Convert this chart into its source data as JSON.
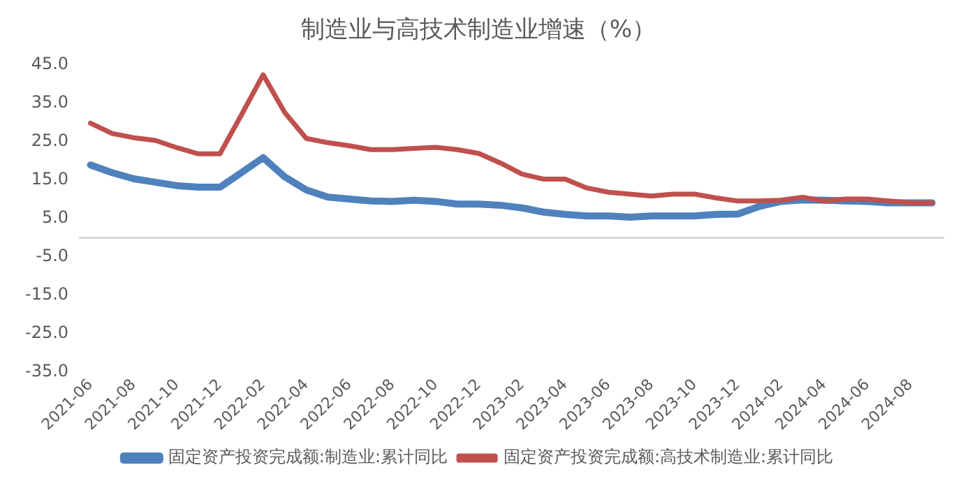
{
  "chart_data": {
    "type": "line",
    "title": "制造业与高技术制造业增速（%）",
    "categories": [
      "2021-06",
      null,
      "2021-08",
      null,
      "2021-10",
      null,
      "2021-12",
      null,
      "2022-02",
      null,
      "2022-04",
      null,
      "2022-06",
      null,
      "2022-08",
      null,
      "2022-10",
      null,
      "2022-12",
      null,
      "2023-02",
      null,
      "2023-04",
      null,
      "2023-06",
      null,
      "2023-08",
      null,
      "2023-10",
      null,
      "2023-12",
      null,
      "2024-02",
      null,
      "2024-04",
      null,
      "2024-06",
      null,
      "2024-08",
      null
    ],
    "series": [
      {
        "name": "固定资产投资完成额:制造业:累计同比",
        "color": "#4f81bd",
        "values": [
          18.9,
          16.9,
          15.3,
          14.4,
          13.5,
          13.1,
          13.1,
          16.9,
          20.8,
          15.8,
          12.4,
          10.5,
          10,
          9.5,
          9.4,
          9.7,
          9.4,
          8.7,
          8.7,
          8.4,
          7.7,
          6.6,
          6,
          5.6,
          5.6,
          5.3,
          5.6,
          5.6,
          5.6,
          6,
          6.1,
          8.1,
          9.4,
          9.8,
          9.7,
          9.5,
          9.4,
          9,
          9,
          9
        ]
      },
      {
        "name": "固定资产投资完成额:高技术制造业:累计同比",
        "color": "#c0504d",
        "values": [
          29.8,
          27.1,
          26,
          25.3,
          23.4,
          21.8,
          21.8,
          32,
          42.4,
          32.6,
          25.8,
          24.7,
          23.9,
          22.9,
          22.9,
          23.2,
          23.5,
          22.9,
          21.9,
          19.4,
          16.5,
          15.2,
          15.2,
          12.9,
          11.8,
          11.3,
          10.8,
          11.3,
          11.3,
          10.3,
          9.5,
          9.5,
          9.7,
          10.5,
          9.5,
          10,
          10,
          9.5,
          9,
          9
        ]
      }
    ],
    "ylim": [
      -35,
      45
    ],
    "yticks": [
      {
        "value": 45,
        "label": "45.0"
      },
      {
        "value": 35,
        "label": "35.0"
      },
      {
        "value": 25,
        "label": "25.0"
      },
      {
        "value": 15,
        "label": "15.0"
      },
      {
        "value": 5,
        "label": "5.0"
      },
      {
        "value": -5,
        "label": "-5.0"
      },
      {
        "value": -15,
        "label": "-15.0"
      },
      {
        "value": -25,
        "label": "-25.0"
      },
      {
        "value": -35,
        "label": "-35.0"
      }
    ],
    "grid": false,
    "legend": "bottom",
    "marker": "none",
    "line_style": "solid"
  }
}
